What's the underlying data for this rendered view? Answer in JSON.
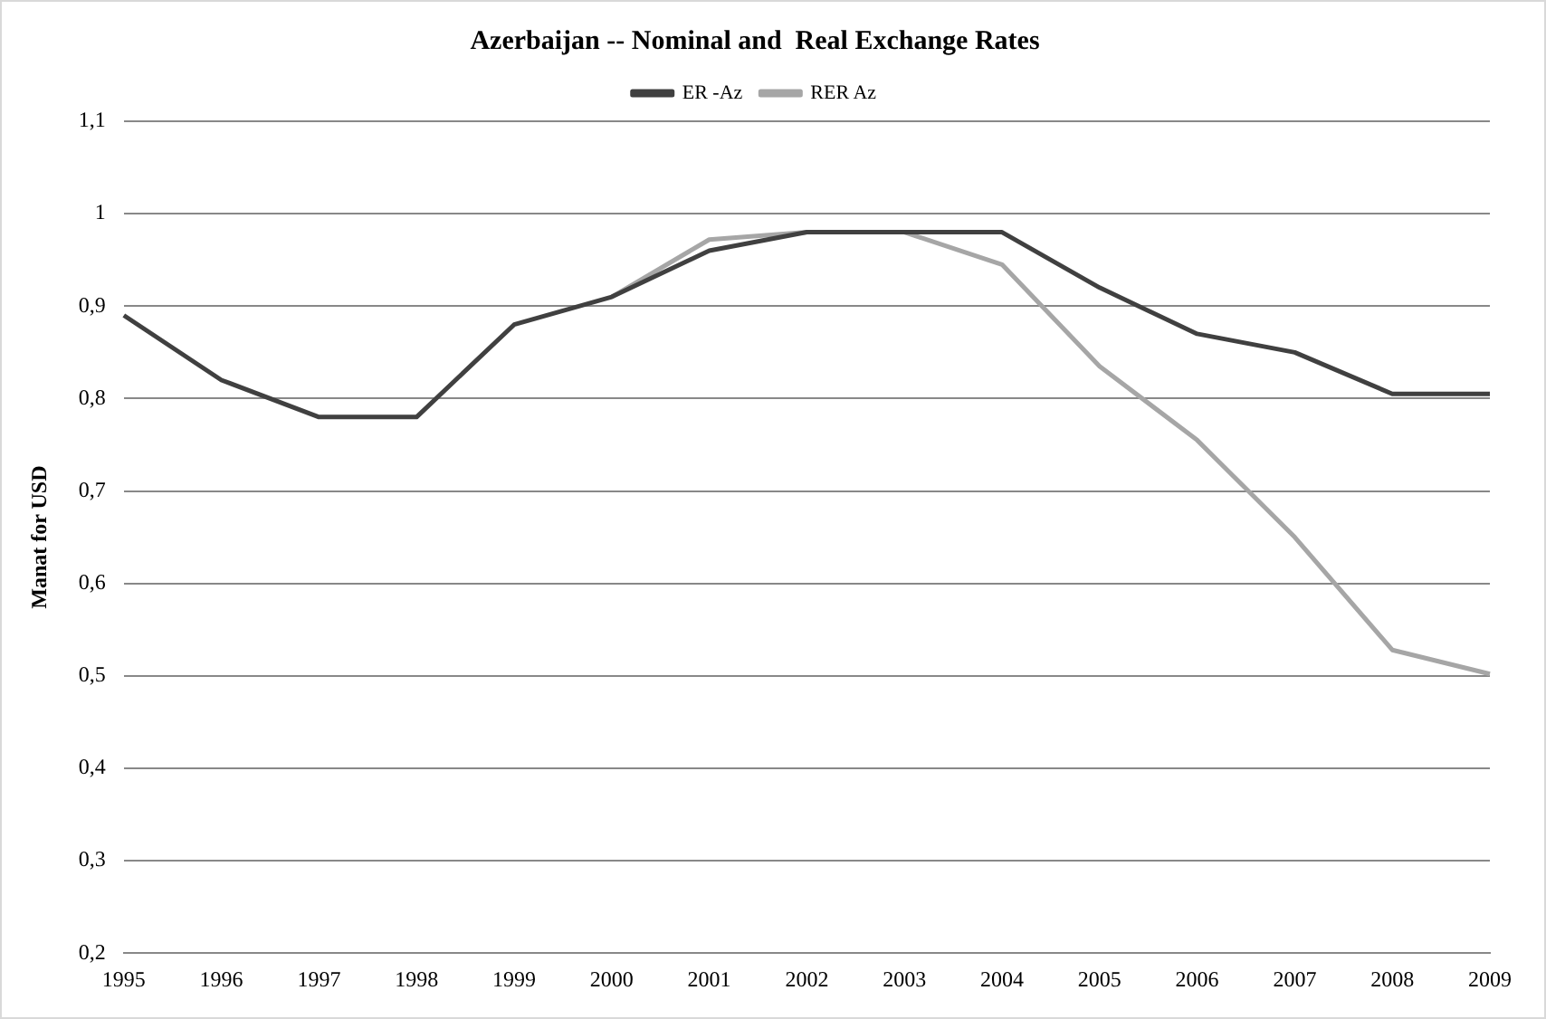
{
  "chart_data": {
    "type": "line",
    "title": "Azerbaijan -- Nominal and  Real Exchange Rates",
    "ylabel": "Manat for USD",
    "categories": [
      "1995",
      "1996",
      "1997",
      "1998",
      "1999",
      "2000",
      "2001",
      "2002",
      "2003",
      "2004",
      "2005",
      "2006",
      "2007",
      "2008",
      "2009"
    ],
    "series": [
      {
        "name": "ER -Az",
        "color": "#404040",
        "values": [
          0.89,
          0.82,
          0.78,
          0.78,
          0.88,
          0.91,
          0.96,
          0.98,
          0.98,
          0.98,
          0.92,
          0.87,
          0.85,
          0.805,
          0.805
        ]
      },
      {
        "name": "RER Az",
        "color": "#a6a6a6",
        "values": [
          null,
          null,
          null,
          null,
          null,
          0.91,
          0.972,
          0.98,
          0.98,
          0.945,
          0.835,
          0.755,
          0.65,
          0.528,
          0.502
        ]
      }
    ],
    "ylim": [
      0.2,
      1.1
    ],
    "yticks": [
      {
        "value": 0.2,
        "label": "0,2"
      },
      {
        "value": 0.3,
        "label": "0,3"
      },
      {
        "value": 0.4,
        "label": "0,4"
      },
      {
        "value": 0.5,
        "label": "0,5"
      },
      {
        "value": 0.6,
        "label": "0,6"
      },
      {
        "value": 0.7,
        "label": "0,7"
      },
      {
        "value": 0.8,
        "label": "0,8"
      },
      {
        "value": 0.9,
        "label": "0,9"
      },
      {
        "value": 1,
        "label": "1"
      },
      {
        "value": 1.1,
        "label": "1,1"
      }
    ],
    "grid": "y",
    "legend": "top",
    "marker": "none",
    "line_style": "solid"
  }
}
